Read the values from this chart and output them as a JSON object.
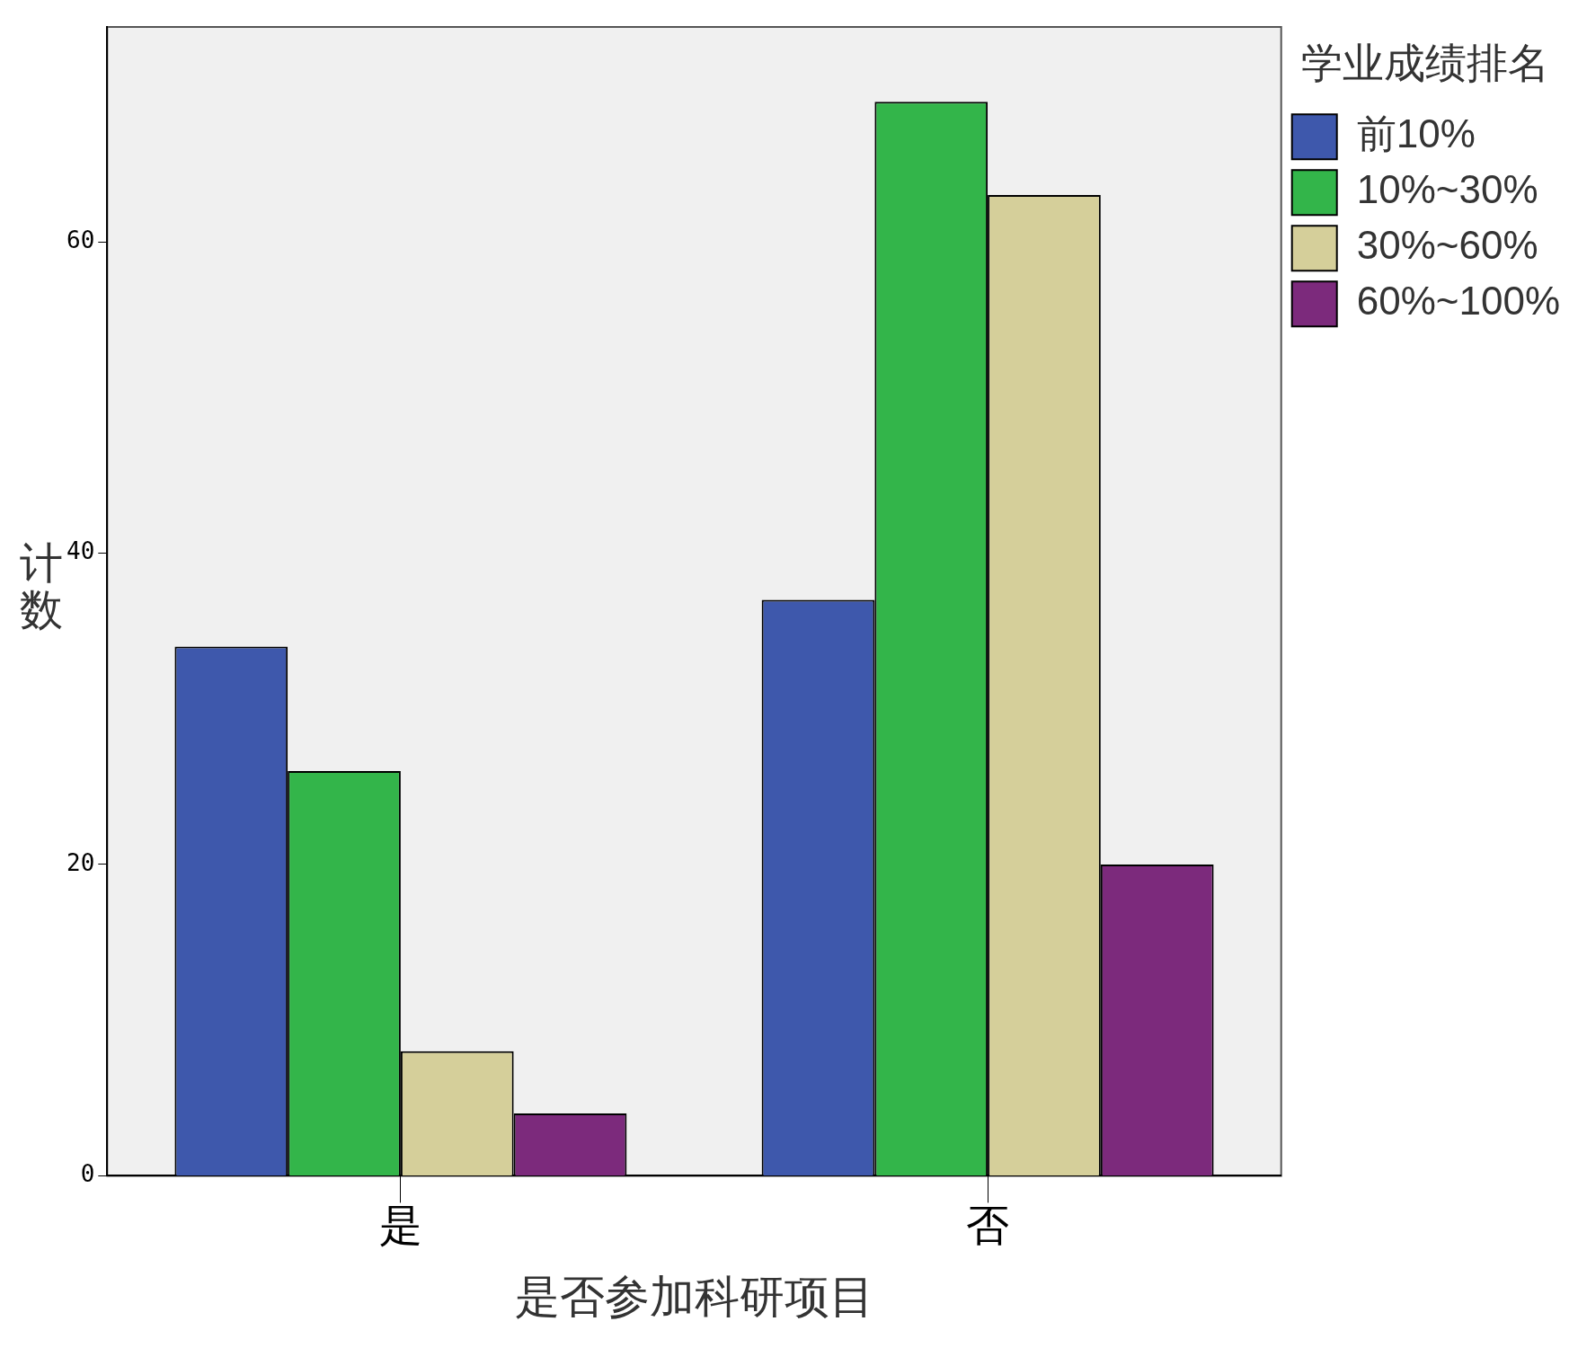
{
  "chart_data": {
    "type": "bar",
    "xlabel": "是否参加科研项目",
    "ylabel": "计数",
    "legend_title": "学业成绩排名",
    "categories": [
      "是",
      "否"
    ],
    "series": [
      {
        "name": "前10%",
        "color": "#3e58ac",
        "values": [
          34,
          37
        ]
      },
      {
        "name": "10%~30%",
        "color": "#33b54a",
        "values": [
          26,
          69
        ]
      },
      {
        "name": "30%~60%",
        "color": "#d5cf9a",
        "values": [
          8,
          63
        ]
      },
      {
        "name": "60%~100%",
        "color": "#7c2a7c",
        "values": [
          4,
          20
        ]
      }
    ],
    "ylim": [
      0,
      73.8
    ],
    "yticks": [
      0,
      20,
      40,
      60
    ],
    "grid": false,
    "legend": "right"
  }
}
